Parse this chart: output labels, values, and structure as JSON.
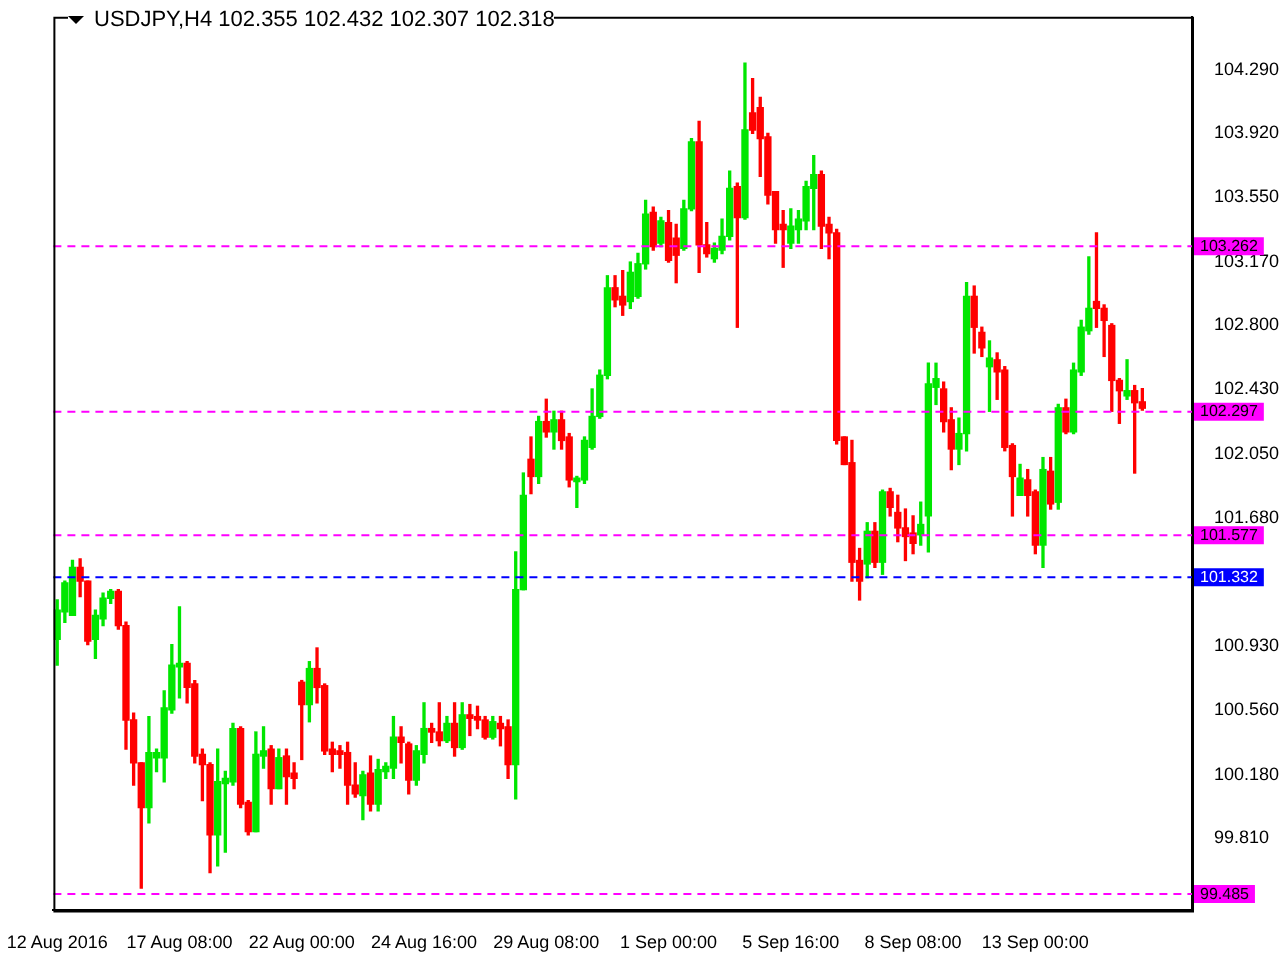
{
  "chart_data": {
    "type": "candlestick",
    "title": "USDJPY,H4 102.355 102.432 102.307 102.318",
    "categories": [
      "12 Aug 2016",
      null,
      null,
      null,
      null,
      null,
      null,
      null,
      null,
      null,
      null,
      null,
      null,
      null,
      null,
      null,
      "17 Aug 08:00",
      null,
      null,
      null,
      null,
      null,
      null,
      null,
      null,
      null,
      null,
      null,
      null,
      null,
      null,
      null,
      "22 Aug 00:00",
      null,
      null,
      null,
      null,
      null,
      null,
      null,
      null,
      null,
      null,
      null,
      null,
      null,
      null,
      null,
      "24 Aug 16:00",
      null,
      null,
      null,
      null,
      null,
      null,
      null,
      null,
      null,
      null,
      null,
      null,
      null,
      null,
      null,
      "29 Aug 08:00",
      null,
      null,
      null,
      null,
      null,
      null,
      null,
      null,
      null,
      null,
      null,
      null,
      null,
      null,
      null,
      "1 Sep 00:00",
      null,
      null,
      null,
      null,
      null,
      null,
      null,
      null,
      null,
      null,
      null,
      null,
      null,
      null,
      null,
      "5 Sep 16:00",
      null,
      null,
      null,
      null,
      null,
      null,
      null,
      null,
      null,
      null,
      null,
      null,
      null,
      null,
      null,
      "8 Sep 08:00",
      null,
      null,
      null,
      null,
      null,
      null,
      null,
      null,
      null,
      null,
      null,
      null,
      null,
      null,
      null,
      "13 Sep 00:00",
      null,
      null,
      null,
      null,
      null,
      null,
      null,
      null,
      null,
      null,
      null,
      null,
      null,
      null,
      null,
      null,
      null,
      null,
      null,
      null
    ],
    "ohlc": [
      [
        100.97,
        101.2,
        100.82,
        101.14
      ],
      [
        101.13,
        101.31,
        101.07,
        101.3
      ],
      [
        101.11,
        101.43,
        101.11,
        101.39
      ],
      [
        101.39,
        101.44,
        101.22,
        101.31
      ],
      [
        101.31,
        101.31,
        100.94,
        100.96
      ],
      [
        100.97,
        101.14,
        100.86,
        101.11
      ],
      [
        101.09,
        101.24,
        101.05,
        101.21
      ],
      [
        101.21,
        101.26,
        101.18,
        101.25
      ],
      [
        101.25,
        101.26,
        101.03,
        101.05
      ],
      [
        101.05,
        101.07,
        100.33,
        100.5
      ],
      [
        100.5,
        100.54,
        100.12,
        100.25
      ],
      [
        100.25,
        100.25,
        99.52,
        99.99
      ],
      [
        99.99,
        100.52,
        99.9,
        100.31
      ],
      [
        100.28,
        100.33,
        100.2,
        100.31
      ],
      [
        100.28,
        100.67,
        100.14,
        100.57
      ],
      [
        100.56,
        100.94,
        100.54,
        100.82
      ],
      [
        100.81,
        101.16,
        100.63,
        100.83
      ],
      [
        100.83,
        100.84,
        100.6,
        100.69
      ],
      [
        100.71,
        100.73,
        100.25,
        100.29
      ],
      [
        100.3,
        100.33,
        100.03,
        100.24
      ],
      [
        100.24,
        100.25,
        99.61,
        99.83
      ],
      [
        99.83,
        100.33,
        99.65,
        100.14
      ],
      [
        100.13,
        100.2,
        99.73,
        100.16
      ],
      [
        100.14,
        100.48,
        100.12,
        100.45
      ],
      [
        100.45,
        100.46,
        99.99,
        100.01
      ],
      [
        100.02,
        100.03,
        99.83,
        99.85
      ],
      [
        99.85,
        100.43,
        99.85,
        100.3
      ],
      [
        100.29,
        100.46,
        100.22,
        100.32
      ],
      [
        100.33,
        100.35,
        100.01,
        100.1
      ],
      [
        100.1,
        100.33,
        100.1,
        100.28
      ],
      [
        100.29,
        100.33,
        100.01,
        100.17
      ],
      [
        100.19,
        100.25,
        100.1,
        100.16
      ],
      [
        100.72,
        100.73,
        100.27,
        100.59
      ],
      [
        100.59,
        100.84,
        100.49,
        100.8
      ],
      [
        100.8,
        100.92,
        100.6,
        100.69
      ],
      [
        100.7,
        100.71,
        100.3,
        100.32
      ],
      [
        100.33,
        100.37,
        100.2,
        100.3
      ],
      [
        100.32,
        100.35,
        100.22,
        100.3
      ],
      [
        100.31,
        100.37,
        100.01,
        100.12
      ],
      [
        100.12,
        100.25,
        100.05,
        100.07
      ],
      [
        100.06,
        100.2,
        99.92,
        100.18
      ],
      [
        100.19,
        100.29,
        99.97,
        100.01
      ],
      [
        100.01,
        100.27,
        99.97,
        100.21
      ],
      [
        100.2,
        100.25,
        100.16,
        100.23
      ],
      [
        100.22,
        100.52,
        100.16,
        100.4
      ],
      [
        100.4,
        100.46,
        100.25,
        100.37
      ],
      [
        100.36,
        100.37,
        100.07,
        100.15
      ],
      [
        100.15,
        100.35,
        100.12,
        100.32
      ],
      [
        100.3,
        100.6,
        100.25,
        100.45
      ],
      [
        100.45,
        100.48,
        100.37,
        100.43
      ],
      [
        100.43,
        100.6,
        100.35,
        100.38
      ],
      [
        100.38,
        100.52,
        100.37,
        100.48
      ],
      [
        100.48,
        100.6,
        100.29,
        100.34
      ],
      [
        100.34,
        100.6,
        100.33,
        100.53
      ],
      [
        100.53,
        100.59,
        100.41,
        100.51
      ],
      [
        100.52,
        100.58,
        100.45,
        100.5
      ],
      [
        100.5,
        100.52,
        100.39,
        100.4
      ],
      [
        100.4,
        100.52,
        100.39,
        100.49
      ],
      [
        100.48,
        100.52,
        100.35,
        100.45
      ],
      [
        100.46,
        100.5,
        100.16,
        100.24
      ],
      [
        100.24,
        101.48,
        100.04,
        101.26
      ],
      [
        101.26,
        101.94,
        101.26,
        101.81
      ],
      [
        102.02,
        102.15,
        101.82,
        101.92
      ],
      [
        101.92,
        102.27,
        101.88,
        102.24
      ],
      [
        102.24,
        102.37,
        102.15,
        102.18
      ],
      [
        102.18,
        102.3,
        102.08,
        102.25
      ],
      [
        102.25,
        102.3,
        102.08,
        102.13
      ],
      [
        102.15,
        102.17,
        101.86,
        101.9
      ],
      [
        101.89,
        101.92,
        101.74,
        101.91
      ],
      [
        101.9,
        102.15,
        101.88,
        102.13
      ],
      [
        102.09,
        102.43,
        102.08,
        102.27
      ],
      [
        102.27,
        102.54,
        102.26,
        102.51
      ],
      [
        102.51,
        103.09,
        102.49,
        103.02
      ],
      [
        103.02,
        103.09,
        102.91,
        102.95
      ],
      [
        102.97,
        103.12,
        102.86,
        102.92
      ],
      [
        102.94,
        103.17,
        102.9,
        103.11
      ],
      [
        102.97,
        103.22,
        102.96,
        103.16
      ],
      [
        103.16,
        103.53,
        103.13,
        103.45
      ],
      [
        103.46,
        103.49,
        103.24,
        103.26
      ],
      [
        103.28,
        103.43,
        103.26,
        103.41
      ],
      [
        103.4,
        103.47,
        103.17,
        103.18
      ],
      [
        103.31,
        103.39,
        103.05,
        103.21
      ],
      [
        103.25,
        103.53,
        103.24,
        103.48
      ],
      [
        103.48,
        103.89,
        103.47,
        103.87
      ],
      [
        103.87,
        103.99,
        103.11,
        103.27
      ],
      [
        103.27,
        103.4,
        103.2,
        103.22
      ],
      [
        103.19,
        103.28,
        103.17,
        103.25
      ],
      [
        103.24,
        103.42,
        103.22,
        103.32
      ],
      [
        103.32,
        103.7,
        103.3,
        103.6
      ],
      [
        103.61,
        103.63,
        102.79,
        103.43
      ],
      [
        103.43,
        104.33,
        103.42,
        103.94
      ],
      [
        104.04,
        104.24,
        103.92,
        103.94
      ],
      [
        104.07,
        104.13,
        103.67,
        103.89
      ],
      [
        103.9,
        103.92,
        103.51,
        103.56
      ],
      [
        103.58,
        103.58,
        103.28,
        103.36
      ],
      [
        103.39,
        103.47,
        103.14,
        103.36
      ],
      [
        103.28,
        103.48,
        103.25,
        103.38
      ],
      [
        103.36,
        103.47,
        103.28,
        103.42
      ],
      [
        103.41,
        103.64,
        103.36,
        103.61
      ],
      [
        103.6,
        103.79,
        103.36,
        103.68
      ],
      [
        103.68,
        103.7,
        103.25,
        103.38
      ],
      [
        103.39,
        103.43,
        103.19,
        103.34
      ],
      [
        103.34,
        103.36,
        102.11,
        102.13
      ],
      [
        102.15,
        102.15,
        101.99,
        101.99
      ],
      [
        102.0,
        102.13,
        101.31,
        101.42
      ],
      [
        101.43,
        101.5,
        101.2,
        101.31
      ],
      [
        101.41,
        101.65,
        101.33,
        101.6
      ],
      [
        101.6,
        101.65,
        101.39,
        101.42
      ],
      [
        101.42,
        101.84,
        101.35,
        101.83
      ],
      [
        101.83,
        101.85,
        101.69,
        101.74
      ],
      [
        101.71,
        101.81,
        101.54,
        101.62
      ],
      [
        101.62,
        101.73,
        101.43,
        101.57
      ],
      [
        101.59,
        101.69,
        101.47,
        101.53
      ],
      [
        101.58,
        101.77,
        101.52,
        101.64
      ],
      [
        101.69,
        102.58,
        101.48,
        102.46
      ],
      [
        102.44,
        102.58,
        102.34,
        102.49
      ],
      [
        102.43,
        102.47,
        102.18,
        102.24
      ],
      [
        102.25,
        102.32,
        101.96,
        102.08
      ],
      [
        102.08,
        102.26,
        101.99,
        102.17
      ],
      [
        102.17,
        103.05,
        102.07,
        102.97
      ],
      [
        102.97,
        103.03,
        102.64,
        102.79
      ],
      [
        102.76,
        102.79,
        102.62,
        102.67
      ],
      [
        102.56,
        102.71,
        102.3,
        102.61
      ],
      [
        102.6,
        102.64,
        102.37,
        102.53
      ],
      [
        102.54,
        102.56,
        102.07,
        102.09
      ],
      [
        102.1,
        102.11,
        101.69,
        101.92
      ],
      [
        101.81,
        101.99,
        101.81,
        101.91
      ],
      [
        101.9,
        101.96,
        101.69,
        101.81
      ],
      [
        101.83,
        101.84,
        101.47,
        101.52
      ],
      [
        101.52,
        102.03,
        101.39,
        101.96
      ],
      [
        101.95,
        102.03,
        101.73,
        101.76
      ],
      [
        101.77,
        102.34,
        101.73,
        102.32
      ],
      [
        102.32,
        102.37,
        102.17,
        102.18
      ],
      [
        102.18,
        102.58,
        102.17,
        102.54
      ],
      [
        102.53,
        102.83,
        102.51,
        102.79
      ],
      [
        102.77,
        103.2,
        102.75,
        102.9
      ],
      [
        102.94,
        103.34,
        102.79,
        102.9
      ],
      [
        102.9,
        102.92,
        102.62,
        102.83
      ],
      [
        102.8,
        102.81,
        102.3,
        102.48
      ],
      [
        102.48,
        102.49,
        102.23,
        102.42
      ],
      [
        102.39,
        102.6,
        102.37,
        102.42
      ],
      [
        102.42,
        102.45,
        101.94,
        102.35
      ],
      [
        102.355,
        102.432,
        102.307,
        102.318
      ],
      null,
      null,
      null,
      null,
      null,
      null
    ],
    "ylim": [
      99.39,
      104.6
    ],
    "yticks": [
      {
        "value": 104.29,
        "label": "104.290"
      },
      {
        "value": 103.92,
        "label": "103.920"
      },
      {
        "value": 103.55,
        "label": "103.550"
      },
      {
        "value": 103.17,
        "label": "103.170"
      },
      {
        "value": 102.8,
        "label": "102.800"
      },
      {
        "value": 102.43,
        "label": "102.430"
      },
      {
        "value": 102.05,
        "label": "102.050"
      },
      {
        "value": 101.68,
        "label": "101.680"
      },
      {
        "value": 100.93,
        "label": "100.930"
      },
      {
        "value": 100.56,
        "label": "100.560"
      },
      {
        "value": 100.18,
        "label": "100.180"
      },
      {
        "value": 99.81,
        "label": "99.810"
      }
    ],
    "ref_lines": [
      {
        "axis": "y",
        "value": 103.262,
        "label": "103.262",
        "color": "#ff00ff",
        "line_style": "dashed"
      },
      {
        "axis": "y",
        "value": 102.297,
        "label": "102.297",
        "color": "#ff00ff",
        "line_style": "dashed"
      },
      {
        "axis": "y",
        "value": 101.577,
        "label": "101.577",
        "color": "#ff00ff",
        "line_style": "dashed"
      },
      {
        "axis": "y",
        "value": 101.332,
        "label": "101.332",
        "color": "#0000ff",
        "line_style": "dashed"
      },
      {
        "axis": "y",
        "value": 99.485,
        "label": "99.485",
        "color": "#ff00ff",
        "line_style": "dashed"
      }
    ],
    "grid": false,
    "legend": false
  }
}
